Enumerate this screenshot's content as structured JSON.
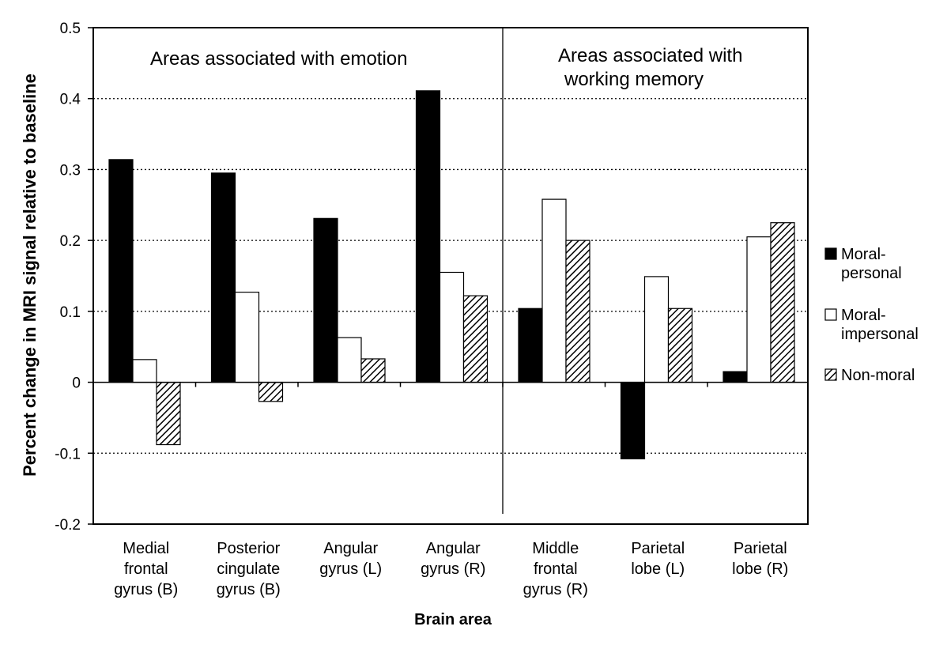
{
  "chart_data": {
    "type": "bar",
    "xlabel": "Brain area",
    "ylabel": "Percent change in MRI signal relative to baseline",
    "ylim": [
      -0.2,
      0.5
    ],
    "yticks": [
      "-0.2",
      "-0.1",
      "0",
      "0.1",
      "0.2",
      "0.3",
      "0.4",
      "0.5"
    ],
    "grid": "horizontal dotted",
    "legend_position": "right",
    "categories": [
      [
        "Medial",
        "frontal",
        "gyrus (B)"
      ],
      [
        "Posterior",
        "cingulate",
        "gyrus (B)"
      ],
      [
        "Angular",
        "gyrus (L)"
      ],
      [
        "Angular",
        "gyrus (R)"
      ],
      [
        "Middle",
        "frontal",
        "gyrus (R)"
      ],
      [
        "Parietal",
        "lobe (L)"
      ],
      [
        "Parietal",
        "lobe (R)"
      ]
    ],
    "series": [
      {
        "name": [
          "Moral-",
          "personal"
        ],
        "fill": "#000000",
        "values": [
          0.314,
          0.295,
          0.231,
          0.411,
          0.104,
          -0.108,
          0.015
        ]
      },
      {
        "name": [
          "Moral-",
          "impersonal"
        ],
        "fill": "#ffffff",
        "values": [
          0.032,
          0.127,
          0.063,
          0.155,
          0.258,
          0.149,
          0.205
        ]
      },
      {
        "name": [
          "Non-moral"
        ],
        "fill": "hatch",
        "values": [
          -0.088,
          -0.027,
          0.033,
          0.122,
          0.2,
          0.104,
          0.225
        ]
      }
    ],
    "annotations": [
      {
        "lines": [
          "Areas associated with emotion"
        ]
      },
      {
        "lines": [
          "Areas associated with",
          "working memory"
        ]
      }
    ]
  }
}
